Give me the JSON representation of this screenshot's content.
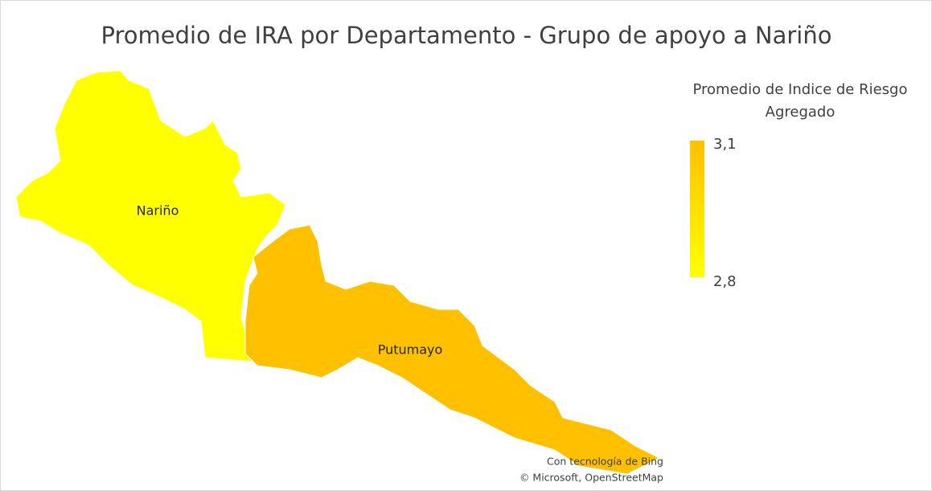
{
  "chart_data": {
    "type": "map",
    "title": "Promedio de IRA por Departamento - Grupo de apoyo a Nariño",
    "legend_title": "Promedio de Indice de Riesgo Agregado",
    "categories": [
      "Nariño",
      "Putumayo"
    ],
    "values": [
      2.8,
      3.1
    ],
    "colorscale": [
      "#ffff00",
      "#ffc000"
    ],
    "clim": [
      2.8,
      3.1
    ],
    "cticks": [
      {
        "value": 3.1,
        "label": "3,1"
      },
      {
        "value": 2.8,
        "label": "2,8"
      }
    ],
    "credits": [
      "Con tecnología de Bing",
      "© Microsoft, OpenStreetMap"
    ]
  }
}
